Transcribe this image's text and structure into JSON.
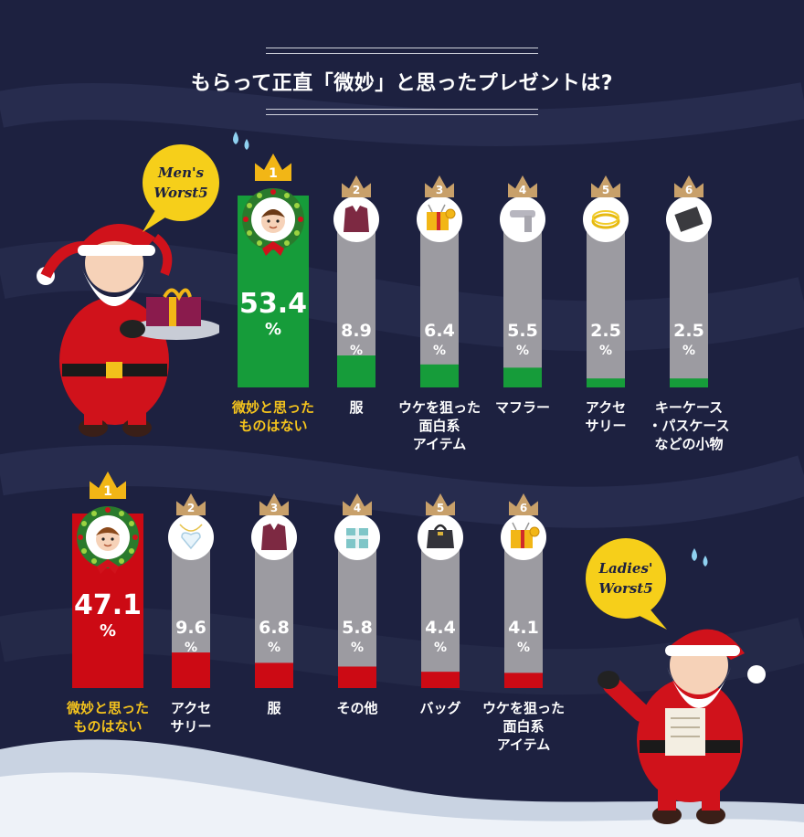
{
  "title": "もらって正直「微妙」と思ったプレゼントは?",
  "colors": {
    "background": "#1d2140",
    "bar_gray": "#9c9ba1",
    "men_accent": "#169c3a",
    "women_accent": "#cc0a14",
    "label_gold": "#f4c31d",
    "label_white": "#ffffff",
    "bubble_yellow": "#f6cf1a"
  },
  "men": {
    "badge": "Men's Worst5",
    "badge_lines": [
      "Men's",
      "Worst5"
    ],
    "icons": [
      "boy-face-icon",
      "shirt-icon",
      "gift-toy-icon",
      "scarf-icon",
      "bracelet-icon",
      "key-case-icon"
    ]
  },
  "women": {
    "badge": "Ladies' Worst5",
    "badge_lines": [
      "Ladies'",
      "Worst5"
    ],
    "icons": [
      "girl-face-icon",
      "heart-necklace-icon",
      "shirt-icon",
      "gift-box-icon",
      "handbag-icon",
      "gift-toy-icon"
    ]
  },
  "chart_data": [
    {
      "type": "bar",
      "title": "Men's Worst5",
      "unit": "%",
      "categories": [
        "微妙と思った\nものはない",
        "服",
        "ウケを狙った\n面白系\nアイテム",
        "マフラー",
        "アクセ\nサリー",
        "キーケース\n・パスケース\nなどの小物"
      ],
      "ranks": [
        "1",
        "2",
        "3",
        "4",
        "5",
        "6"
      ],
      "values": [
        53.4,
        8.9,
        6.4,
        5.5,
        2.5,
        2.5
      ],
      "value_labels": [
        "53.4",
        "8.9",
        "6.4",
        "5.5",
        "2.5",
        "2.5"
      ]
    },
    {
      "type": "bar",
      "title": "Ladies' Worst5",
      "unit": "%",
      "categories": [
        "微妙と思った\nものはない",
        "アクセ\nサリー",
        "服",
        "その他",
        "バッグ",
        "ウケを狙った\n面白系\nアイテム"
      ],
      "ranks": [
        "1",
        "2",
        "3",
        "4",
        "5",
        "6"
      ],
      "values": [
        47.1,
        9.6,
        6.8,
        5.8,
        4.4,
        4.1
      ],
      "value_labels": [
        "47.1",
        "9.6",
        "6.8",
        "5.8",
        "4.4",
        "4.1"
      ]
    }
  ]
}
